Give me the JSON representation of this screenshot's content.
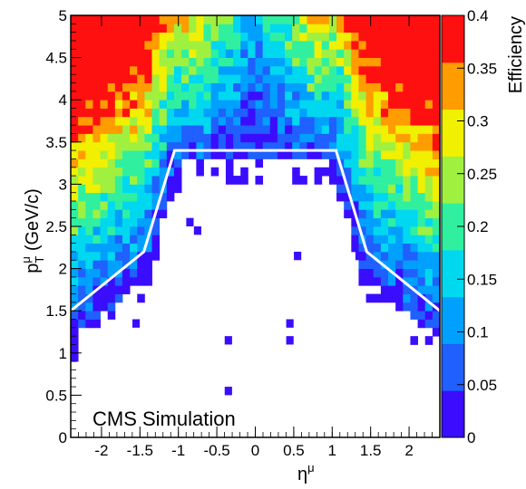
{
  "chart_data": {
    "type": "heatmap",
    "label": "CMS Simulation",
    "xlabel": "η",
    "xlabel_sup": "μ",
    "ylabel": "p",
    "ylabel_sub": "T",
    "ylabel_sup": "μ",
    "ylabel_unit": "(GeV/c)",
    "zlabel": "Efficiency",
    "xlim": [
      -2.4,
      2.4
    ],
    "ylim": [
      0,
      5
    ],
    "zlim": [
      0,
      0.4
    ],
    "x_bins": 50,
    "y_bins": 50,
    "x_ticks": [
      -2,
      -1.5,
      -1,
      -0.5,
      0,
      0.5,
      1,
      1.5,
      2
    ],
    "x_tick_labels": [
      "-2",
      "-1.5",
      "-1",
      "-0.5",
      "0",
      "0.5",
      "1",
      "1.5",
      "2"
    ],
    "y_ticks": [
      0,
      0.5,
      1,
      1.5,
      2,
      2.5,
      3,
      3.5,
      4,
      4.5,
      5
    ],
    "y_tick_labels": [
      "0",
      "0.5",
      "1",
      "1.5",
      "2",
      "2.5",
      "3",
      "3.5",
      "4",
      "4.5",
      "5"
    ],
    "z_ticks": [
      0,
      0.05,
      0.1,
      0.15,
      0.2,
      0.25,
      0.3,
      0.35,
      0.4
    ],
    "z_tick_labels": [
      "0",
      "0.05",
      "0.1",
      "0.15",
      "0.2",
      "0.25",
      "0.3",
      "0.35",
      "0.4"
    ],
    "palette": [
      "#3a0dff",
      "#1f60ff",
      "#00a0ff",
      "#00d8f0",
      "#30f0a0",
      "#a0f040",
      "#f0f000",
      "#ff9c00",
      "#ff1010"
    ],
    "acceptance_curve": {
      "x": [
        -2.4,
        -1.45,
        -1.05,
        1.05,
        1.45,
        2.4
      ],
      "y": [
        1.5,
        2.2,
        3.4,
        3.4,
        2.2,
        1.5
      ],
      "color": "#ffffff"
    },
    "isolated_points": [
      {
        "x": -0.35,
        "y": 0.55,
        "z": 0.02
      },
      {
        "x": -0.35,
        "y": 1.15,
        "z": 0.02
      },
      {
        "x": 0.45,
        "y": 1.15,
        "z": 0.02
      },
      {
        "x": 0.45,
        "y": 1.35,
        "z": 0.02
      },
      {
        "x": -0.75,
        "y": 2.45,
        "z": 0.02
      },
      {
        "x": -1.55,
        "y": 1.35,
        "z": 0.02
      },
      {
        "x": 0.55,
        "y": 2.15,
        "z": 0.02
      },
      {
        "x": -0.85,
        "y": 2.55,
        "z": 0.02
      },
      {
        "x": 1.35,
        "y": 2.15,
        "z": 0.02
      }
    ]
  }
}
